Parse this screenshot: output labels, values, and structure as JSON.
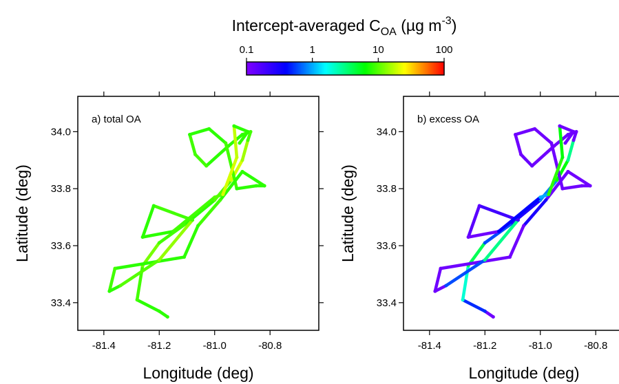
{
  "colorbar": {
    "title": "Intercept-averaged C",
    "title_sub": "OA",
    "title_unit": " (µg m",
    "title_sup": "-3",
    "title_end": ")",
    "log": true,
    "lim": [
      0.1,
      100
    ],
    "ticks": [
      0.1,
      1,
      10,
      100
    ],
    "colormap": [
      "#8000ff",
      "#0000ff",
      "#00ffff",
      "#00ff00",
      "#ffff00",
      "#ff0000"
    ]
  },
  "chart_data": [
    {
      "type": "track",
      "annotation": "a) total OA",
      "xlabel": "Longitude (deg)",
      "ylabel": "Latitude (deg)",
      "xlim": [
        -81.494,
        -80.624
      ],
      "ylim": [
        33.303,
        34.124
      ],
      "xticks": [
        -81.4,
        -81.2,
        {
          "value": -81.0,
          "label": "-81.0"
        },
        -80.8
      ],
      "yticks": [
        33.4,
        33.6,
        33.8,
        {
          "value": 34.0,
          "label": "34.0"
        }
      ],
      "x": [
        -81.17,
        -81.2,
        -81.28,
        -81.26,
        -81.2,
        -81.1,
        -81.0,
        -80.94,
        -80.9,
        -80.88,
        -80.87,
        -80.9,
        -80.95,
        -81.03,
        -81.07,
        -81.09,
        -81.02,
        -80.96,
        -80.92,
        -80.85,
        -80.82,
        -80.9,
        -80.98,
        -81.06,
        -81.11,
        -81.36,
        -81.38,
        -81.34,
        -81.2,
        -81.08,
        -81.22,
        -81.26,
        -81.15,
        -81.0,
        -80.97,
        -80.92,
        -80.93,
        -80.88,
        -80.91
      ],
      "y": [
        33.35,
        33.37,
        33.41,
        33.53,
        33.61,
        33.68,
        33.76,
        33.83,
        33.9,
        33.97,
        34.0,
        33.99,
        33.95,
        33.88,
        33.92,
        33.99,
        34.01,
        33.96,
        33.8,
        33.81,
        33.81,
        33.86,
        33.76,
        33.67,
        33.56,
        33.52,
        33.44,
        33.46,
        33.55,
        33.69,
        33.74,
        33.63,
        33.65,
        33.77,
        33.78,
        33.91,
        34.02,
        34.0,
        33.96
      ],
      "c": [
        8,
        8,
        9,
        12,
        9,
        8,
        10,
        20,
        15,
        9,
        9,
        8,
        8,
        9,
        9,
        8,
        8,
        9,
        8,
        8,
        8,
        8,
        9,
        8,
        8,
        9,
        8,
        10,
        14,
        9,
        8,
        8,
        9,
        10,
        20,
        18,
        8,
        8,
        8
      ]
    },
    {
      "type": "track",
      "annotation": "b) excess OA",
      "xlabel": "Longitude (deg)",
      "ylabel": "Latitude (deg)",
      "xlim": [
        -81.494,
        -80.624
      ],
      "ylim": [
        33.303,
        34.124
      ],
      "xticks": [
        -81.4,
        -81.2,
        {
          "value": -81.0,
          "label": "-81.0"
        },
        -80.8
      ],
      "yticks": [
        33.4,
        33.6,
        33.8,
        {
          "value": 34.0,
          "label": "34.0"
        }
      ],
      "x": [
        -81.17,
        -81.2,
        -81.28,
        -81.26,
        -81.2,
        -81.1,
        -81.0,
        -80.94,
        -80.9,
        -80.88,
        -80.87,
        -80.9,
        -80.95,
        -81.03,
        -81.07,
        -81.09,
        -81.02,
        -80.96,
        -80.92,
        -80.85,
        -80.82,
        -80.9,
        -80.98,
        -81.06,
        -81.11,
        -81.36,
        -81.38,
        -81.34,
        -81.2,
        -81.08,
        -81.22,
        -81.26,
        -81.15,
        -81.0,
        -80.97,
        -80.92,
        -80.93,
        -80.88,
        -80.91
      ],
      "y": [
        33.35,
        33.37,
        33.41,
        33.53,
        33.61,
        33.68,
        33.76,
        33.83,
        33.9,
        33.97,
        34.0,
        33.99,
        33.95,
        33.88,
        33.92,
        33.99,
        34.01,
        33.96,
        33.8,
        33.81,
        33.81,
        33.86,
        33.76,
        33.67,
        33.56,
        33.52,
        33.44,
        33.46,
        33.55,
        33.69,
        33.74,
        33.63,
        33.65,
        33.77,
        33.78,
        33.91,
        34.02,
        34.0,
        33.96
      ],
      "c": [
        0.12,
        0.5,
        2,
        4,
        0.6,
        0.3,
        0.8,
        6,
        3,
        0.12,
        0.12,
        0.12,
        0.12,
        0.13,
        0.12,
        0.12,
        0.12,
        0.12,
        0.12,
        0.12,
        0.12,
        0.12,
        0.3,
        0.12,
        0.12,
        0.12,
        0.12,
        0.6,
        3,
        0.2,
        0.15,
        0.12,
        0.4,
        1,
        8,
        6,
        0.12,
        0.12,
        0.12
      ]
    }
  ]
}
